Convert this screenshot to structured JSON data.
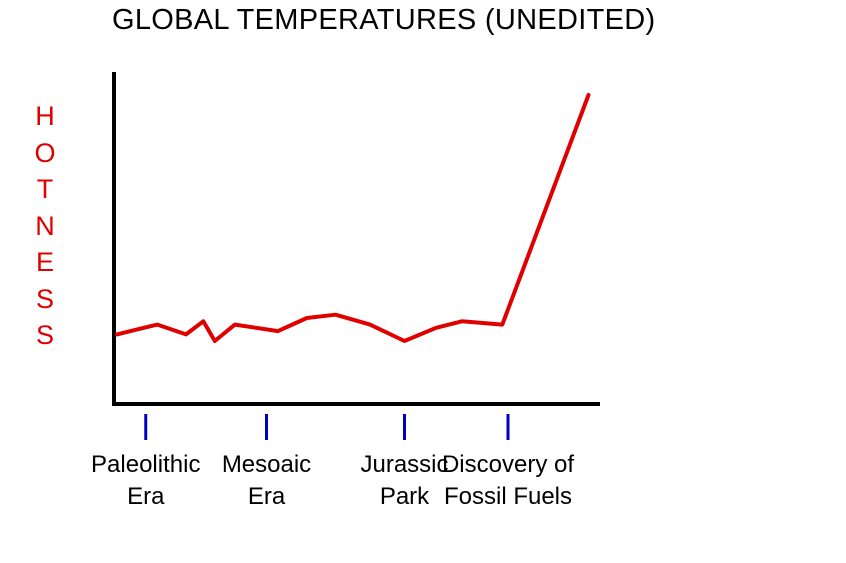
{
  "chart_data": {
    "type": "line",
    "title": "GLOBAL TEMPERATURES (UNEDITED)",
    "ylabel": "HOTNESS",
    "xlabel": "",
    "categories": [
      [
        "Paleolithic",
        "Era"
      ],
      [
        "Mesoaic",
        "Era"
      ],
      [
        "Jurassic",
        "Park"
      ],
      [
        "Discovery of",
        "Fossil Fuels"
      ]
    ],
    "category_positions": [
      0.5,
      2.6,
      5.0,
      6.8
    ],
    "xlim": [
      0,
      8.4
    ],
    "ylim": [
      0,
      10
    ],
    "series": [
      {
        "color": "#e00000",
        "x": [
          0.0,
          0.7,
          1.2,
          1.5,
          1.7,
          2.05,
          2.8,
          3.3,
          3.8,
          4.4,
          5.0,
          5.55,
          6.0,
          6.7,
          8.2
        ],
        "y": [
          2.0,
          2.3,
          2.0,
          2.4,
          1.8,
          2.3,
          2.1,
          2.5,
          2.6,
          2.3,
          1.8,
          2.2,
          2.4,
          2.3,
          9.3
        ]
      }
    ],
    "axis_color": "#000000",
    "tick_color": "#0000c0",
    "grid": false,
    "legend": "none"
  }
}
